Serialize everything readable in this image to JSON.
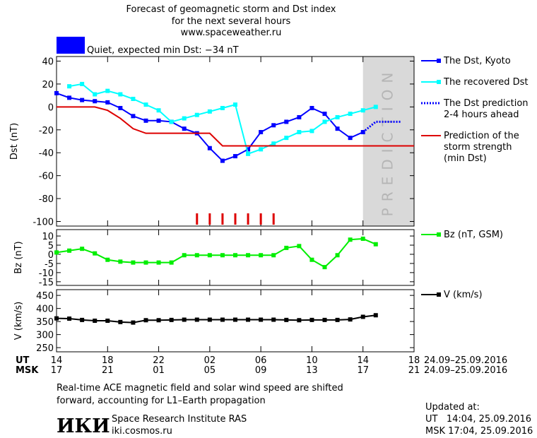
{
  "title": [
    "Forecast of geomagnetic storm and Dst index",
    "for the next several hours",
    "www.spaceweather.ru"
  ],
  "status": {
    "color": "#0000ff",
    "label": "Quiet, expected min Dst: −34 nT"
  },
  "chart_data": [
    {
      "type": "line",
      "y_label": "Dst (nT)",
      "xlim": [
        0,
        28
      ],
      "xticks": [
        0,
        4,
        8,
        12,
        16,
        20,
        24,
        28
      ],
      "ylim": [
        -104,
        44
      ],
      "yticks": [
        40,
        20,
        0,
        -20,
        -40,
        -60,
        -80,
        -100
      ],
      "prediction_region": {
        "x": [
          24,
          28
        ],
        "label": "PREDICTION",
        "color": "#d9d9d9"
      },
      "storm_marks": {
        "color": "#dd0000",
        "x": [
          11,
          12,
          13,
          14,
          15,
          16,
          17
        ]
      },
      "series": [
        {
          "name": [
            "The Dst, Kyoto"
          ],
          "color": "#0000ff",
          "marker": "square",
          "style": "solid",
          "x": [
            0,
            1,
            2,
            3,
            4,
            5,
            6,
            7,
            8,
            9,
            10,
            11,
            12,
            13,
            14,
            15,
            16,
            17,
            18,
            19,
            20,
            21,
            22,
            23,
            24
          ],
          "values": [
            12,
            8,
            6,
            5,
            4,
            -1,
            -8,
            -12,
            -12,
            -13,
            -19,
            -23,
            -36,
            -47,
            -43,
            -37,
            -22,
            -16,
            -13,
            -9,
            -1,
            -6,
            -19,
            -27,
            -22
          ]
        },
        {
          "name": [
            "The recovered Dst"
          ],
          "color": "#00ffff",
          "marker": "square",
          "style": "solid",
          "x": [
            1,
            2,
            3,
            4,
            5,
            6,
            7,
            8,
            9,
            10,
            11,
            12,
            13,
            14,
            15,
            16,
            17,
            18,
            19,
            20,
            21,
            22,
            23,
            24,
            25
          ],
          "values": [
            18,
            20,
            11,
            14,
            11,
            7,
            2,
            -3,
            -13,
            -10,
            -7,
            -4,
            -1,
            2,
            -41,
            -37,
            -32,
            -27,
            -22,
            -21,
            -13,
            -9,
            -6,
            -3,
            0
          ]
        },
        {
          "name": [
            "The Dst prediction",
            "2-4 hours ahead"
          ],
          "color": "#0000ff",
          "marker": "none",
          "style": "dotted",
          "x": [
            24,
            25,
            27
          ],
          "values": [
            -22,
            -13,
            -13
          ]
        },
        {
          "name": [
            "Prediction of the",
            "storm strength",
            "(min Dst)"
          ],
          "color": "#dd0000",
          "marker": "none",
          "style": "solid",
          "x": [
            0,
            3,
            4,
            5,
            6,
            7,
            12,
            13,
            28
          ],
          "values": [
            0,
            0,
            -3,
            -10,
            -19,
            -23,
            -23,
            -34,
            -34
          ]
        }
      ]
    },
    {
      "type": "line",
      "y_label": "Bz (nT)",
      "xlim": [
        0,
        28
      ],
      "xticks": [
        0,
        4,
        8,
        12,
        16,
        20,
        24,
        28
      ],
      "ylim": [
        -17,
        13.5
      ],
      "yticks": [
        10,
        5,
        0,
        -5,
        -10,
        -15
      ],
      "series": [
        {
          "name": [
            "Bz (nT, GSM)"
          ],
          "color": "#00ee00",
          "marker": "square",
          "style": "solid",
          "x": [
            0,
            1,
            2,
            3,
            4,
            5,
            6,
            7,
            8,
            9,
            10,
            11,
            12,
            13,
            14,
            15,
            16,
            17,
            18,
            19,
            20,
            21,
            22,
            23,
            24,
            25
          ],
          "values": [
            1,
            2,
            3,
            0.5,
            -3,
            -4,
            -4.5,
            -4.5,
            -4.5,
            -4.5,
            -0.5,
            -0.5,
            -0.5,
            -0.5,
            -0.5,
            -0.5,
            -0.5,
            -0.5,
            3.5,
            4.5,
            -3,
            -7,
            -0.5,
            8,
            8.5,
            5.5
          ]
        }
      ]
    },
    {
      "type": "line",
      "y_label": "V (km/s)",
      "xlim": [
        0,
        28
      ],
      "xticks": [
        {
          "value": 0,
          "label": "14"
        },
        {
          "value": 4,
          "label": "18"
        },
        {
          "value": 8,
          "label": "22"
        },
        {
          "value": 12,
          "label": "02"
        },
        {
          "value": 16,
          "label": "06"
        },
        {
          "value": 20,
          "label": "10"
        },
        {
          "value": 24,
          "label": "14"
        },
        {
          "value": 28,
          "label": "18"
        }
      ],
      "xtick_labels_msk": [
        "17",
        "21",
        "01",
        "05",
        "09",
        "13",
        "17",
        "21"
      ],
      "x_row_labels": [
        "UT",
        "MSK"
      ],
      "x_range_labels": [
        "24.09–25.09.2016",
        "24.09–25.09.2016"
      ],
      "ylim": [
        234,
        472
      ],
      "yticks": [
        450,
        400,
        350,
        300,
        250
      ],
      "series": [
        {
          "name": [
            "V (km/s)"
          ],
          "color": "#000000",
          "marker": "square",
          "style": "solid",
          "x": [
            0,
            1,
            2,
            3,
            4,
            5,
            6,
            7,
            8,
            9,
            10,
            11,
            12,
            13,
            14,
            15,
            16,
            17,
            18,
            19,
            20,
            21,
            22,
            23,
            24,
            25
          ],
          "values": [
            362,
            361,
            356,
            353,
            353,
            348,
            346,
            355,
            355,
            356,
            357,
            357,
            357,
            357,
            357,
            357,
            357,
            357,
            356,
            355,
            356,
            356,
            356,
            358,
            368,
            374
          ]
        }
      ]
    }
  ],
  "note": [
    "Real-time ACE magnetic field and solar wind speed are shifted",
    "forward, accounting for L1–Earth propagation"
  ],
  "institute": {
    "logo": "ИКИ",
    "name": "Space Research Institute RAS",
    "url": "iki.cosmos.ru"
  },
  "updated": [
    "Updated at:",
    "UT   14:04, 25.09.2016",
    "MSK 17:04, 25.09.2016"
  ]
}
